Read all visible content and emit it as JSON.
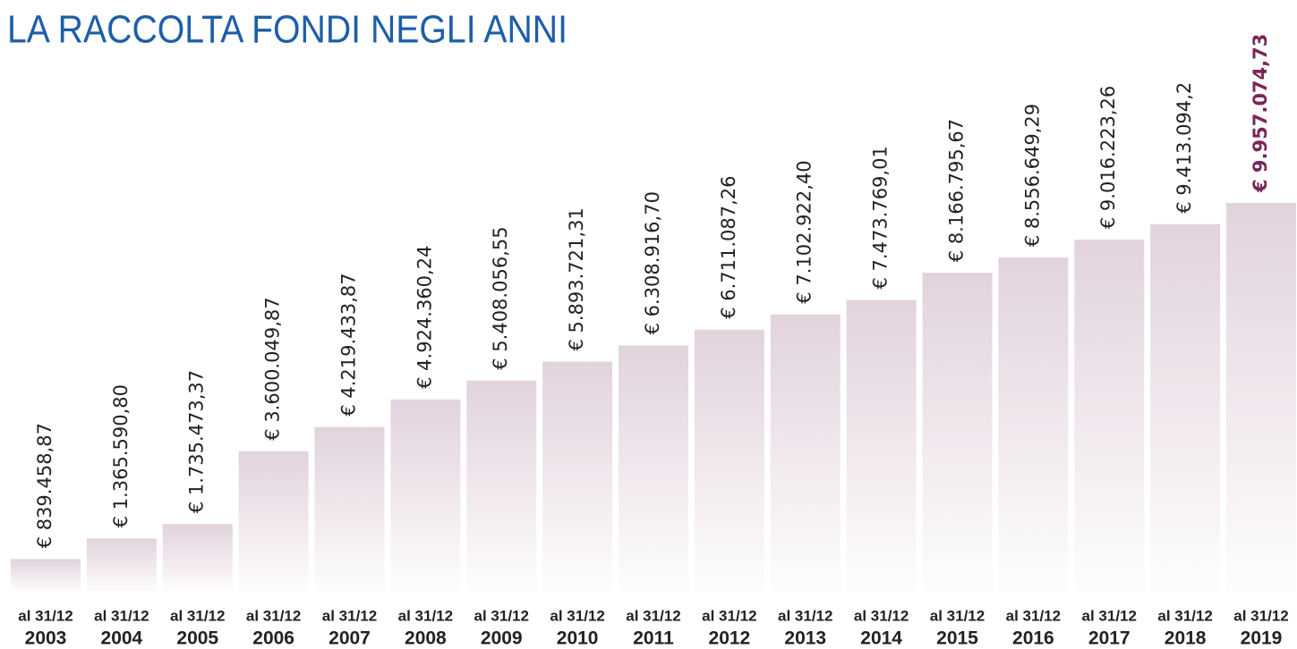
{
  "chart_data": {
    "type": "bar",
    "title": "LA RACCOLTA FONDI NEGLI ANNI",
    "category_prefix": "al 31/12",
    "categories": [
      "2003",
      "2004",
      "2005",
      "2006",
      "2007",
      "2008",
      "2009",
      "2010",
      "2011",
      "2012",
      "2013",
      "2014",
      "2015",
      "2016",
      "2017",
      "2018",
      "2019"
    ],
    "values": [
      839458.87,
      1365590.8,
      1735473.37,
      3600049.87,
      4219433.87,
      4924360.24,
      5408056.55,
      5893721.31,
      6308916.7,
      6711087.26,
      7102922.4,
      7473769.01,
      8166795.67,
      8556649.29,
      9016223.26,
      9413094.2,
      9957074.73
    ],
    "value_labels": [
      "€ 839.458,87",
      "€ 1.365.590,80",
      "€ 1.735.473,37",
      "€ 3.600.049,87",
      "€ 4.219.433,87",
      "€ 4.924.360,24",
      "€ 5.408.056,55",
      "€ 5.893.721,31",
      "€ 6.308.916,70",
      "€ 6.711.087,26",
      "€ 7.102.922,40",
      "€ 7.473.769,01",
      "€ 8.166.795,67",
      "€ 8.556.649,29",
      "€ 9.016.223,26",
      "€ 9.413.094,2",
      "€ 9.957.074,73"
    ],
    "color": "#e2d3dd",
    "title_color": "#1d5fa8",
    "highlight": {
      "index": 16,
      "color": "#7a2657"
    }
  }
}
